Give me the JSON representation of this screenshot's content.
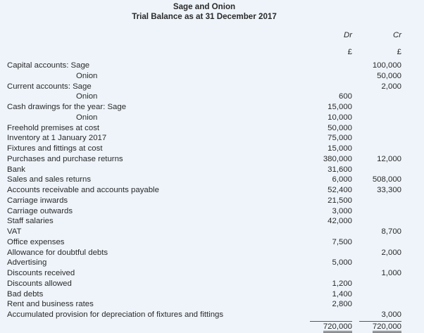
{
  "title": "Sage and Onion",
  "subtitle": "Trial Balance as at 31 December 2017",
  "columns": {
    "dr": "Dr",
    "cr": "Cr",
    "dr_unit": "£",
    "cr_unit": "£"
  },
  "rows": [
    {
      "label": "Capital accounts: Sage",
      "dr": "",
      "cr": "100,000"
    },
    {
      "label": "Onion",
      "indent": true,
      "dr": "",
      "cr": "50,000"
    },
    {
      "label": "Current accounts: Sage",
      "dr": "",
      "cr": "2,000"
    },
    {
      "label": "Onion",
      "indent": true,
      "dr": "600",
      "cr": ""
    },
    {
      "label": "Cash drawings for the year: Sage",
      "dr": "15,000",
      "cr": ""
    },
    {
      "label": "Onion",
      "indent": true,
      "dr": "10,000",
      "cr": ""
    },
    {
      "label": "Freehold premises at cost",
      "dr": "50,000",
      "cr": ""
    },
    {
      "label": "Inventory at 1 January 2017",
      "dr": "75,000",
      "cr": ""
    },
    {
      "label": "Fixtures and fittings at cost",
      "dr": "15,000",
      "cr": ""
    },
    {
      "label": "Purchases and purchase returns",
      "dr": "380,000",
      "cr": "12,000"
    },
    {
      "label": "Bank",
      "dr": "31,600",
      "cr": ""
    },
    {
      "label": "Sales and sales returns",
      "dr": "6,000",
      "cr": "508,000"
    },
    {
      "label": "Accounts receivable and accounts payable",
      "dr": "52,400",
      "cr": "33,300"
    },
    {
      "label": "Carriage inwards",
      "dr": "21,500",
      "cr": ""
    },
    {
      "label": "Carriage outwards",
      "dr": "3,000",
      "cr": ""
    },
    {
      "label": "Staff salaries",
      "dr": "42,000",
      "cr": ""
    },
    {
      "label": "VAT",
      "dr": "",
      "cr": "8,700"
    },
    {
      "label": "Office expenses",
      "dr": "7,500",
      "cr": ""
    },
    {
      "label": "Allowance for doubtful debts",
      "dr": "",
      "cr": "2,000"
    },
    {
      "label": "Advertising",
      "dr": "5,000",
      "cr": ""
    },
    {
      "label": "Discounts received",
      "dr": "",
      "cr": "1,000"
    },
    {
      "label": "Discounts allowed",
      "dr": "1,200",
      "cr": ""
    },
    {
      "label": "Bad debts",
      "dr": "1,400",
      "cr": ""
    },
    {
      "label": "Rent and business rates",
      "dr": "2,800",
      "cr": ""
    },
    {
      "label": "Accumulated provision for depreciation of fixtures and fittings",
      "dr": "",
      "cr": "3,000"
    }
  ],
  "totals": {
    "dr": "720,000",
    "cr": "720,000"
  }
}
